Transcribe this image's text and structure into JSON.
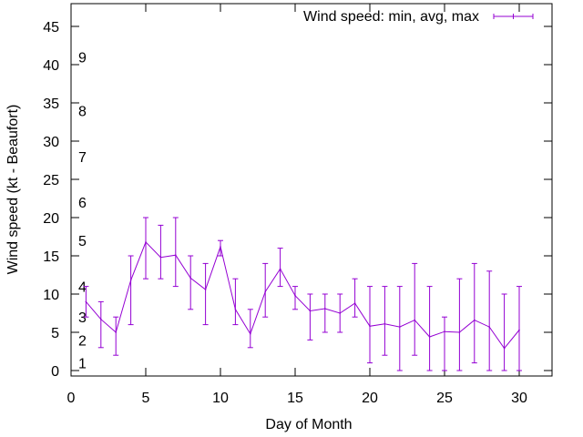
{
  "chart_data": {
    "type": "line",
    "title": "",
    "xlabel": "Day of Month",
    "ylabel": "Wind speed (kt - Beaufort)",
    "xlim": [
      0,
      32
    ],
    "ylim": [
      -1,
      48
    ],
    "x_ticks": [
      0,
      5,
      10,
      15,
      20,
      25,
      30
    ],
    "y_ticks": [
      0,
      5,
      10,
      15,
      20,
      25,
      30,
      35,
      40,
      45
    ],
    "beaufort_scale": [
      {
        "label": "1",
        "kt": 1
      },
      {
        "label": "2",
        "kt": 4
      },
      {
        "label": "3",
        "kt": 7
      },
      {
        "label": "4",
        "kt": 11
      },
      {
        "label": "5",
        "kt": 17
      },
      {
        "label": "6",
        "kt": 22
      },
      {
        "label": "7",
        "kt": 28
      },
      {
        "label": "8",
        "kt": 34
      },
      {
        "label": "9",
        "kt": 41
      }
    ],
    "legend": "Wind speed: min, avg, max",
    "legend_position": "top-right",
    "color": "#9400d3",
    "series": [
      {
        "name": "Wind speed: min, avg, max",
        "x": [
          1,
          2,
          3,
          4,
          5,
          6,
          7,
          8,
          9,
          10,
          11,
          12,
          13,
          14,
          15,
          16,
          17,
          18,
          19,
          20,
          21,
          22,
          23,
          24,
          25,
          26,
          27,
          28,
          29,
          30
        ],
        "min": [
          7,
          3,
          2,
          6,
          12,
          12,
          11,
          8,
          6,
          15,
          6,
          3,
          7,
          11,
          8,
          4,
          5,
          5,
          7,
          1,
          2,
          0,
          2,
          0,
          0,
          0,
          1,
          0,
          0,
          0
        ],
        "avg": [
          9,
          6.7,
          5,
          11.8,
          16.8,
          14.8,
          15.1,
          12.1,
          10.6,
          16.2,
          8,
          4.8,
          10.3,
          13.3,
          9.8,
          7.8,
          8.1,
          7.5,
          8.8,
          5.8,
          6.1,
          5.7,
          6.6,
          4.4,
          5.1,
          5,
          6.6,
          5.7,
          2.9,
          5.3
        ],
        "max": [
          11,
          9,
          7,
          15,
          20,
          19,
          20,
          15,
          14,
          17,
          12,
          8,
          14,
          16,
          11,
          10,
          10,
          10,
          12,
          11,
          11,
          11,
          14,
          11,
          7,
          12,
          14,
          13,
          10,
          11
        ]
      }
    ]
  }
}
